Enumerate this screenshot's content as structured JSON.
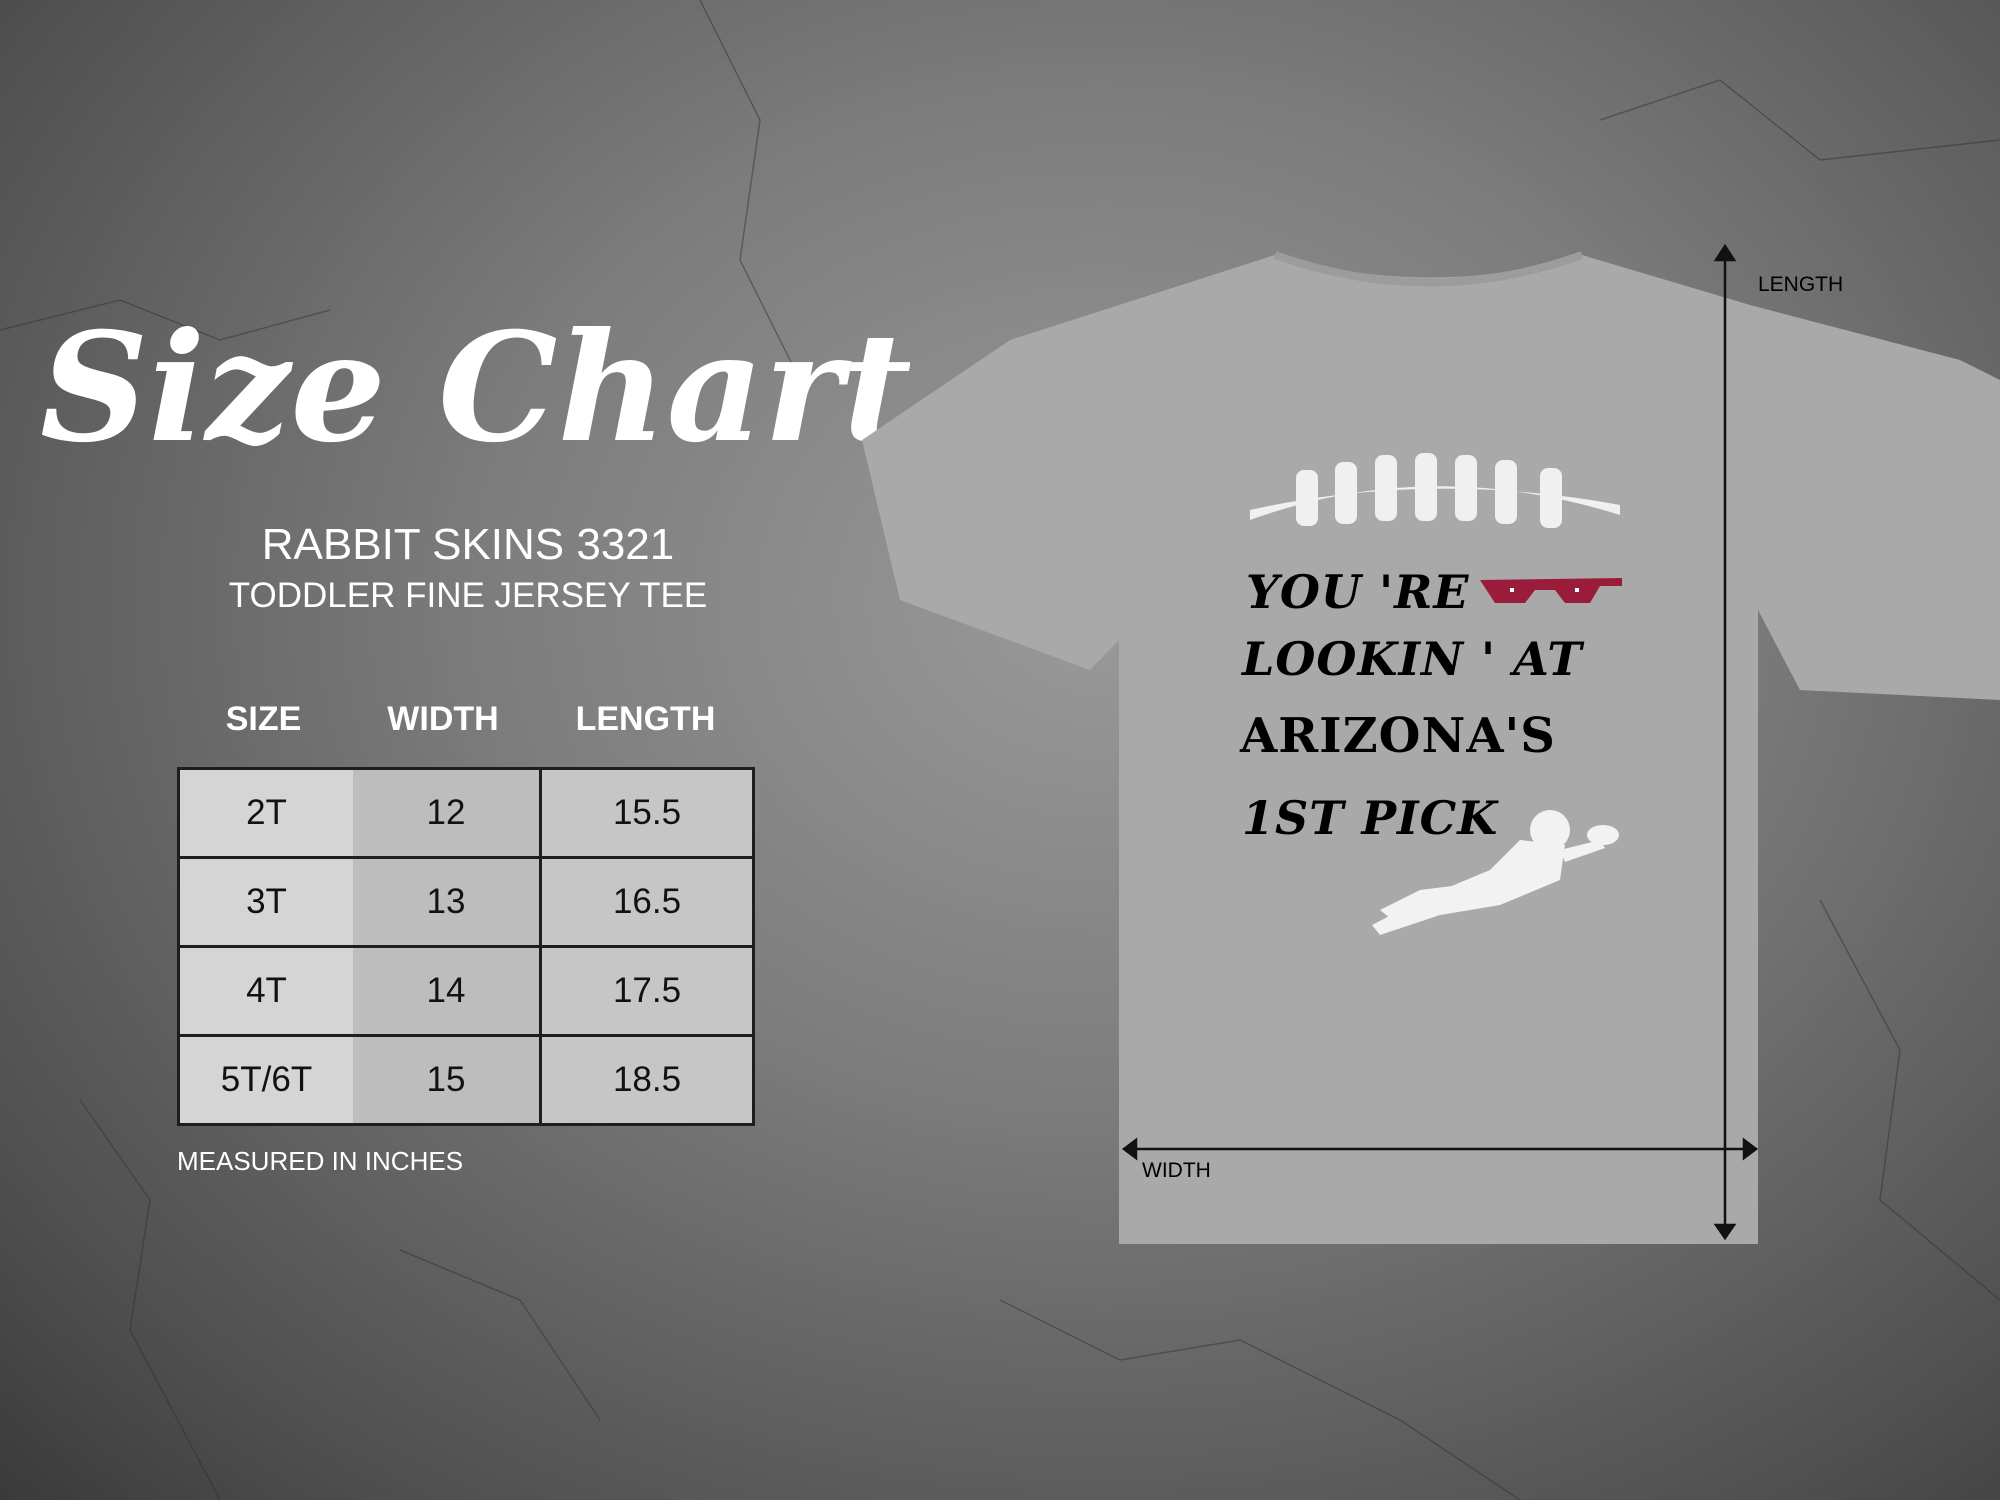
{
  "title": "Size Chart",
  "brand": {
    "name": "RABBIT SKINS 3321",
    "subtitle": "TODDLER FINE JERSEY TEE"
  },
  "table": {
    "headers": [
      "SIZE",
      "WIDTH",
      "LENGTH"
    ],
    "rows": [
      [
        "2T",
        "12",
        "15.5"
      ],
      [
        "3T",
        "13",
        "16.5"
      ],
      [
        "4T",
        "14",
        "17.5"
      ],
      [
        "5T/6T",
        "15",
        "18.5"
      ]
    ]
  },
  "note": "MEASURED IN INCHES",
  "diagram": {
    "length_label": "LENGTH",
    "width_label": "WIDTH"
  },
  "shirt_design": {
    "lines": [
      "YOU 'RE",
      "LOOKIN ' AT",
      "ARIZONA'S",
      "1ST PICK"
    ],
    "colors": {
      "shirt": "#a9a9a9",
      "accent": "#9b1b3a",
      "print": "#f2f2f2"
    },
    "icons": [
      "football-laces-icon",
      "pixel-sunglasses-icon",
      "football-player-icon"
    ]
  }
}
